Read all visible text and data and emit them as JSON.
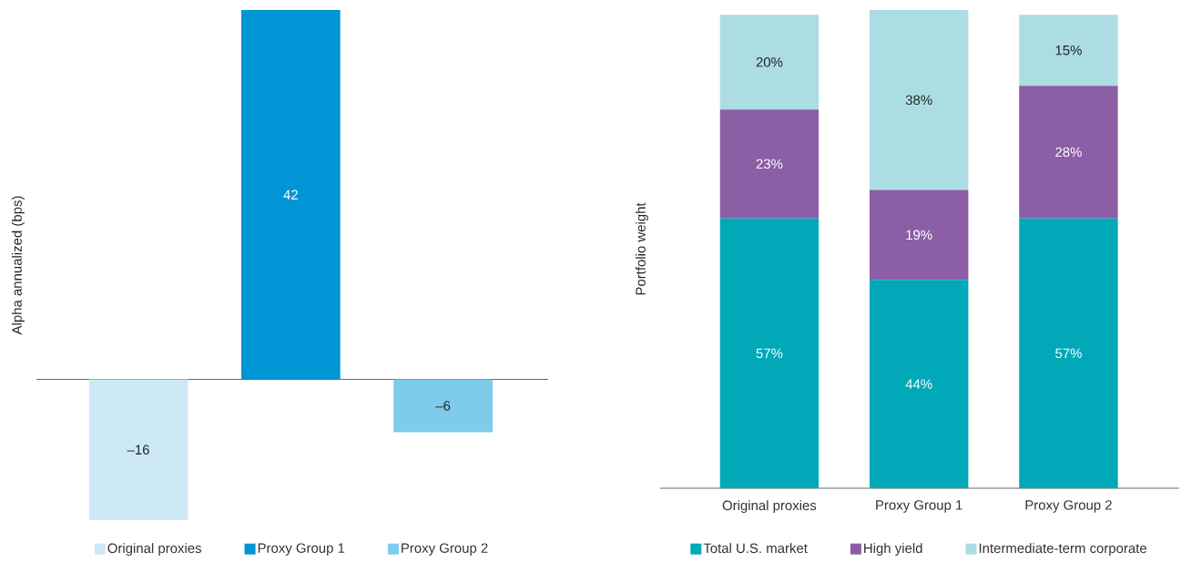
{
  "chart_data": [
    {
      "type": "bar",
      "stacked": true,
      "ylabel": "Alpha annualized (bps)",
      "categories": [
        null,
        null,
        null
      ],
      "legend": "bottom",
      "series": [
        {
          "name": "Original proxies",
          "color": "#cde9f6",
          "values": [
            -16,
            null,
            null
          ],
          "value_labels": [
            "–16",
            null,
            null
          ]
        },
        {
          "name": "Proxy Group 1",
          "color": "#0095d5",
          "values": [
            null,
            42,
            null
          ],
          "value_labels": [
            null,
            "42",
            null
          ]
        },
        {
          "name": "Proxy Group 2",
          "color": "#7fcbeb",
          "values": [
            null,
            null,
            -6
          ],
          "value_labels": [
            null,
            null,
            "–6"
          ]
        }
      ]
    },
    {
      "type": "bar",
      "stacked": true,
      "ylabel": "Portfolio weight",
      "categories": [
        "Original proxies",
        "Proxy Group 1",
        "Proxy Group 2"
      ],
      "legend": "bottom",
      "series": [
        {
          "name": "Total U.S. market",
          "color": "#00a8b8",
          "values": [
            57,
            44,
            57
          ],
          "value_labels": [
            "57%",
            "44%",
            "57%"
          ]
        },
        {
          "name": "High yield",
          "color": "#8b5ea6",
          "values": [
            23,
            19,
            28
          ],
          "value_labels": [
            "23%",
            "19%",
            "28%"
          ]
        },
        {
          "name": "Intermediate-term corporate",
          "color": "#acdde3",
          "values": [
            20,
            38,
            15
          ],
          "value_labels": [
            "20%",
            "38%",
            "15%"
          ]
        }
      ]
    }
  ]
}
